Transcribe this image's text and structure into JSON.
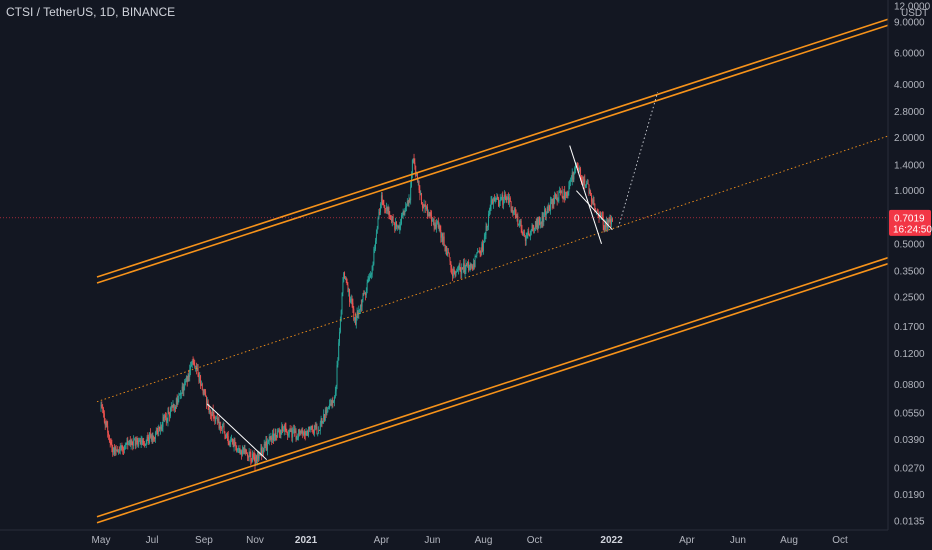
{
  "header": {
    "title": "CTSI / TetherUS, 1D, BINANCE"
  },
  "colors": {
    "background": "#131722",
    "channel": "#f7931a",
    "up": "#26a69a",
    "down": "#ef5350",
    "price_tag": "#f23645",
    "wedge": "#ffffff"
  },
  "chart_data": {
    "type": "candlestick",
    "title": "CTSI / TetherUS, 1D, BINANCE",
    "y_unit": "USDT",
    "y_scale": "log",
    "ylim": [
      0.012,
      12.0
    ],
    "y_ticks": [
      "12.0000",
      "9.0000",
      "6.0000",
      "4.0000",
      "2.8000",
      "2.0000",
      "1.4000",
      "1.0000",
      "0.7019",
      "0.5000",
      "0.3500",
      "0.2500",
      "0.1700",
      "0.1200",
      "0.0800",
      "0.0550",
      "0.0390",
      "0.0270",
      "0.0190",
      "0.0135"
    ],
    "x_ticks": [
      "May",
      "Jul",
      "Sep",
      "Nov",
      "2021",
      "Apr",
      "Jun",
      "Aug",
      "Oct",
      "2022",
      "Apr",
      "Jun",
      "Aug",
      "Oct"
    ],
    "last_price": "0.7019",
    "countdown": "16:24:50",
    "price_path": [
      [
        "2020-05-01",
        0.06
      ],
      [
        "2020-05-15",
        0.034
      ],
      [
        "2020-06-01",
        0.036
      ],
      [
        "2020-07-01",
        0.04
      ],
      [
        "2020-08-01",
        0.065
      ],
      [
        "2020-08-20",
        0.11
      ],
      [
        "2020-09-05",
        0.062
      ],
      [
        "2020-10-01",
        0.038
      ],
      [
        "2020-11-01",
        0.03
      ],
      [
        "2020-12-01",
        0.045
      ],
      [
        "2020-12-20",
        0.042
      ],
      [
        "2021-01-15",
        0.045
      ],
      [
        "2021-02-05",
        0.07
      ],
      [
        "2021-02-15",
        0.35
      ],
      [
        "2021-03-01",
        0.18
      ],
      [
        "2021-03-20",
        0.35
      ],
      [
        "2021-04-01",
        0.9
      ],
      [
        "2021-04-20",
        0.6
      ],
      [
        "2021-05-05",
        0.9
      ],
      [
        "2021-05-08",
        1.5
      ],
      [
        "2021-05-20",
        0.85
      ],
      [
        "2021-06-10",
        0.6
      ],
      [
        "2021-06-25",
        0.35
      ],
      [
        "2021-07-20",
        0.38
      ],
      [
        "2021-08-01",
        0.5
      ],
      [
        "2021-08-10",
        0.85
      ],
      [
        "2021-08-30",
        0.9
      ],
      [
        "2021-09-20",
        0.55
      ],
      [
        "2021-10-10",
        0.7
      ],
      [
        "2021-10-25",
        0.9
      ],
      [
        "2021-11-10",
        1.0
      ],
      [
        "2021-11-20",
        1.4
      ],
      [
        "2021-12-01",
        1.1
      ],
      [
        "2021-12-15",
        0.75
      ],
      [
        "2021-12-25",
        0.62
      ],
      [
        "2022-01-02",
        0.7019
      ]
    ],
    "channel": {
      "upper": [
        [
          "2020-05-01",
          0.33
        ],
        [
          "2022-11-01",
          8.5
        ]
      ],
      "lower": [
        [
          "2020-05-01",
          0.0145
        ],
        [
          "2022-11-01",
          0.38
        ]
      ],
      "mid": [
        [
          "2020-05-01",
          0.065
        ],
        [
          "2022-11-01",
          1.85
        ]
      ]
    },
    "projection": [
      [
        "2022-01-02",
        0.62
      ],
      [
        "2022-02-25",
        3.6
      ]
    ],
    "wedges": [
      [
        [
          "2020-09-05",
          0.062
        ],
        [
          "2020-11-15",
          0.03
        ]
      ],
      [
        [
          "2021-11-12",
          1.8
        ],
        [
          "2021-12-20",
          0.5
        ]
      ],
      [
        [
          "2021-11-20",
          1.0
        ],
        [
          "2022-01-02",
          0.6
        ]
      ]
    ]
  }
}
